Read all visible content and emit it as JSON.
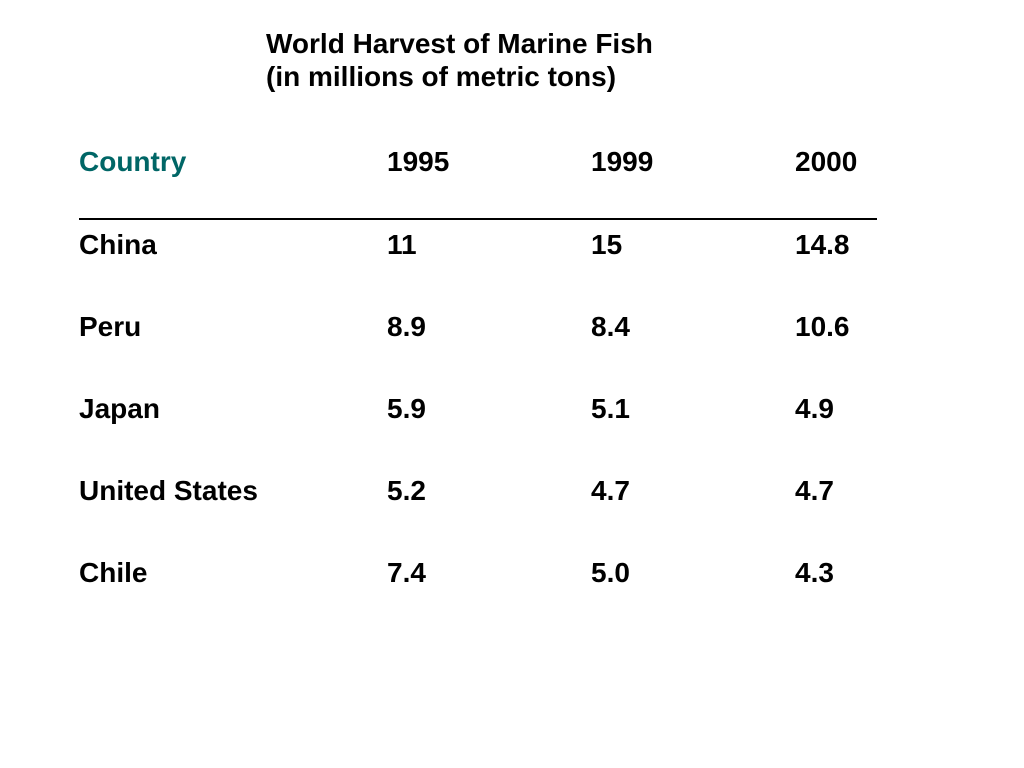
{
  "title": {
    "line1": "World Harvest of Marine Fish",
    "line2": "(in millions of metric tons)"
  },
  "table": {
    "headers": [
      "Country",
      "1995",
      "1999",
      "2000"
    ],
    "rows": [
      [
        "China",
        "11",
        "15",
        "14.8"
      ],
      [
        "Peru",
        "8.9",
        "8.4",
        "10.6"
      ],
      [
        "Japan",
        "5.9",
        "5.1",
        "4.9"
      ],
      [
        "United States",
        "5.2",
        "4.7",
        "4.7"
      ],
      [
        "Chile",
        "7.4",
        "5.0",
        "4.3"
      ]
    ]
  },
  "colors": {
    "header_country": "#006666",
    "text": "#000000",
    "background": "#ffffff"
  }
}
